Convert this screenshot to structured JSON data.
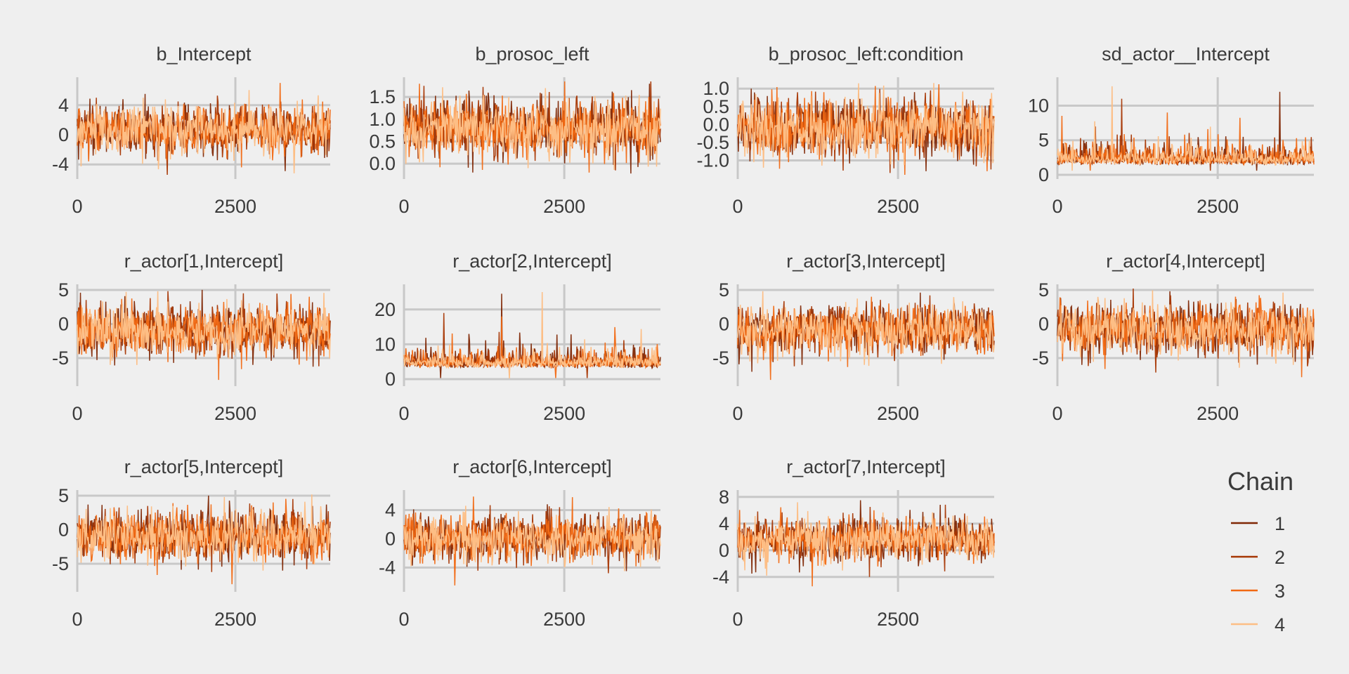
{
  "figure": {
    "colors": {
      "background": "#efefef",
      "grid": "#c8c8c8",
      "text": "#3a3a3a"
    },
    "legend": {
      "title": "Chain",
      "position": "right-bottom"
    }
  },
  "chart_data": [
    {
      "type": "line",
      "title": "b_Intercept",
      "xlim": [
        0,
        4000
      ],
      "ylim": [
        -5.4,
        7.2
      ],
      "xticks": [
        0,
        2500
      ],
      "yticks": [
        -4,
        0,
        4
      ],
      "ytick_labels": [
        "-4",
        "0",
        "4"
      ],
      "grid": true,
      "series": [
        {
          "name": "1",
          "center": 0.7,
          "spread": 1.6,
          "high_peak": 4.8,
          "low_peak": -4.9
        },
        {
          "name": "2",
          "center": 0.7,
          "spread": 1.6,
          "high_peak": 4.5,
          "low_peak": -5.4
        },
        {
          "name": "3",
          "center": 0.7,
          "spread": 1.6,
          "high_peak": 7.0,
          "low_peak": -4.4
        },
        {
          "name": "4",
          "center": 0.7,
          "spread": 1.6,
          "high_peak": 5.0,
          "low_peak": -5.2
        }
      ]
    },
    {
      "type": "line",
      "title": "b_prosoc_left",
      "xlim": [
        0,
        4000
      ],
      "ylim": [
        -0.25,
        1.85
      ],
      "xticks": [
        0,
        2500
      ],
      "yticks": [
        0,
        0.5,
        1,
        1.5
      ],
      "ytick_labels": [
        "0.0",
        "0.5",
        "1.0",
        "1.5"
      ],
      "grid": true,
      "series": [
        {
          "name": "1",
          "center": 0.8,
          "spread": 0.32,
          "high_peak": 1.8,
          "low_peak": -0.2
        },
        {
          "name": "2",
          "center": 0.8,
          "spread": 0.32,
          "high_peak": 1.75,
          "low_peak": -0.15
        },
        {
          "name": "3",
          "center": 0.8,
          "spread": 0.32,
          "high_peak": 1.8,
          "low_peak": -0.2
        },
        {
          "name": "4",
          "center": 0.8,
          "spread": 0.32,
          "high_peak": 1.7,
          "low_peak": -0.1
        }
      ]
    },
    {
      "type": "line",
      "title": "b_prosoc_left:condition",
      "xlim": [
        0,
        4000
      ],
      "ylim": [
        -1.4,
        1.2
      ],
      "xticks": [
        0,
        2500
      ],
      "yticks": [
        -1,
        -0.5,
        0,
        0.5,
        1
      ],
      "ytick_labels": [
        "-1.0",
        "-0.5",
        "0.0",
        "0.5",
        "1.0"
      ],
      "grid": true,
      "series": [
        {
          "name": "1",
          "center": -0.1,
          "spread": 0.4,
          "high_peak": 1.0,
          "low_peak": -1.3
        },
        {
          "name": "2",
          "center": -0.1,
          "spread": 0.4,
          "high_peak": 0.95,
          "low_peak": -1.35
        },
        {
          "name": "3",
          "center": -0.1,
          "spread": 0.4,
          "high_peak": 0.9,
          "low_peak": -1.3
        },
        {
          "name": "4",
          "center": -0.1,
          "spread": 0.4,
          "high_peak": 1.15,
          "low_peak": -1.2
        }
      ]
    },
    {
      "type": "line",
      "title": "sd_actor__Intercept",
      "xlim": [
        0,
        4000
      ],
      "ylim": [
        0,
        13.5
      ],
      "xticks": [
        0,
        2500
      ],
      "yticks": [
        0,
        5,
        10
      ],
      "ytick_labels": [
        "0",
        "5",
        "10"
      ],
      "grid": true,
      "skew": "right",
      "series": [
        {
          "name": "1",
          "center": 2.3,
          "spread": 1.2,
          "high_peak": 12.0,
          "low_peak": 0.6
        },
        {
          "name": "2",
          "center": 2.3,
          "spread": 1.2,
          "high_peak": 11.0,
          "low_peak": 0.6
        },
        {
          "name": "3",
          "center": 2.3,
          "spread": 1.2,
          "high_peak": 9.0,
          "low_peak": 0.6
        },
        {
          "name": "4",
          "center": 2.3,
          "spread": 1.2,
          "high_peak": 12.8,
          "low_peak": 0.6
        }
      ]
    },
    {
      "type": "line",
      "title": "r_actor[1,Intercept]",
      "xlim": [
        0,
        4000
      ],
      "ylim": [
        -8.5,
        5.2
      ],
      "xticks": [
        0,
        2500
      ],
      "yticks": [
        -5,
        0,
        5
      ],
      "ytick_labels": [
        "-5",
        "0",
        "5"
      ],
      "grid": true,
      "series": [
        {
          "name": "1",
          "center": -0.9,
          "spread": 1.8,
          "high_peak": 5.0,
          "low_peak": -6.0
        },
        {
          "name": "2",
          "center": -0.9,
          "spread": 1.8,
          "high_peak": 4.5,
          "low_peak": -6.2
        },
        {
          "name": "3",
          "center": -0.9,
          "spread": 1.8,
          "high_peak": 4.0,
          "low_peak": -8.2
        },
        {
          "name": "4",
          "center": -0.9,
          "spread": 1.8,
          "high_peak": 4.8,
          "low_peak": -6.0
        }
      ]
    },
    {
      "type": "line",
      "title": "r_actor[2,Intercept]",
      "xlim": [
        0,
        4000
      ],
      "ylim": [
        -0.8,
        26
      ],
      "xticks": [
        0,
        2500
      ],
      "yticks": [
        0,
        10,
        20
      ],
      "ytick_labels": [
        "0",
        "10",
        "20"
      ],
      "grid": true,
      "skew": "right",
      "series": [
        {
          "name": "1",
          "center": 4.8,
          "spread": 2.2,
          "high_peak": 24.5,
          "low_peak": 0.3
        },
        {
          "name": "2",
          "center": 4.8,
          "spread": 2.2,
          "high_peak": 19.0,
          "low_peak": 0.3
        },
        {
          "name": "3",
          "center": 4.8,
          "spread": 2.2,
          "high_peak": 18.0,
          "low_peak": 0.3
        },
        {
          "name": "4",
          "center": 4.8,
          "spread": 2.2,
          "high_peak": 25.0,
          "low_peak": 0.2
        }
      ]
    },
    {
      "type": "line",
      "title": "r_actor[3,Intercept]",
      "xlim": [
        0,
        4000
      ],
      "ylim": [
        -8.5,
        5.2
      ],
      "xticks": [
        0,
        2500
      ],
      "yticks": [
        -5,
        0,
        5
      ],
      "ytick_labels": [
        "-5",
        "0",
        "5"
      ],
      "grid": true,
      "series": [
        {
          "name": "1",
          "center": -0.9,
          "spread": 1.8,
          "high_peak": 4.6,
          "low_peak": -6.0
        },
        {
          "name": "2",
          "center": -0.9,
          "spread": 1.8,
          "high_peak": 4.2,
          "low_peak": -6.2
        },
        {
          "name": "3",
          "center": -0.9,
          "spread": 1.8,
          "high_peak": 4.0,
          "low_peak": -8.2
        },
        {
          "name": "4",
          "center": -0.9,
          "spread": 1.8,
          "high_peak": 4.8,
          "low_peak": -6.0
        }
      ]
    },
    {
      "type": "line",
      "title": "r_actor[4,Intercept]",
      "xlim": [
        0,
        4000
      ],
      "ylim": [
        -8.5,
        5.2
      ],
      "xticks": [
        0,
        2500
      ],
      "yticks": [
        -5,
        0,
        5
      ],
      "ytick_labels": [
        "-5",
        "0",
        "5"
      ],
      "grid": true,
      "series": [
        {
          "name": "1",
          "center": -0.9,
          "spread": 1.8,
          "high_peak": 4.8,
          "low_peak": -6.0
        },
        {
          "name": "2",
          "center": -0.9,
          "spread": 1.8,
          "high_peak": 4.2,
          "low_peak": -6.2
        },
        {
          "name": "3",
          "center": -0.9,
          "spread": 1.8,
          "high_peak": 4.0,
          "low_peak": -7.8
        },
        {
          "name": "4",
          "center": -0.9,
          "spread": 1.8,
          "high_peak": 4.6,
          "low_peak": -6.0
        }
      ]
    },
    {
      "type": "line",
      "title": "r_actor[5,Intercept]",
      "xlim": [
        0,
        4000
      ],
      "ylim": [
        -8.5,
        5.2
      ],
      "xticks": [
        0,
        2500
      ],
      "yticks": [
        -5,
        0,
        5
      ],
      "ytick_labels": [
        "-5",
        "0",
        "5"
      ],
      "grid": true,
      "series": [
        {
          "name": "1",
          "center": -0.9,
          "spread": 1.8,
          "high_peak": 5.0,
          "low_peak": -6.0
        },
        {
          "name": "2",
          "center": -0.9,
          "spread": 1.8,
          "high_peak": 4.5,
          "low_peak": -6.2
        },
        {
          "name": "3",
          "center": -0.9,
          "spread": 1.8,
          "high_peak": 4.0,
          "low_peak": -8.0
        },
        {
          "name": "4",
          "center": -0.9,
          "spread": 1.8,
          "high_peak": 4.8,
          "low_peak": -6.0
        }
      ]
    },
    {
      "type": "line",
      "title": "r_actor[6,Intercept]",
      "xlim": [
        0,
        4000
      ],
      "ylim": [
        -6.8,
        6.2
      ],
      "xticks": [
        0,
        2500
      ],
      "yticks": [
        -4,
        0,
        4
      ],
      "ytick_labels": [
        "-4",
        "0",
        "4"
      ],
      "grid": true,
      "series": [
        {
          "name": "1",
          "center": 0.2,
          "spread": 1.6,
          "high_peak": 4.8,
          "low_peak": -4.5
        },
        {
          "name": "2",
          "center": 0.2,
          "spread": 1.6,
          "high_peak": 4.4,
          "low_peak": -4.8
        },
        {
          "name": "3",
          "center": 0.2,
          "spread": 1.6,
          "high_peak": 5.8,
          "low_peak": -6.5
        },
        {
          "name": "4",
          "center": 0.2,
          "spread": 1.6,
          "high_peak": 4.6,
          "low_peak": -4.5
        }
      ]
    },
    {
      "type": "line",
      "title": "r_actor[7,Intercept]",
      "xlim": [
        0,
        4000
      ],
      "ylim": [
        -5.6,
        8.4
      ],
      "xticks": [
        0,
        2500
      ],
      "yticks": [
        -4,
        0,
        4,
        8
      ],
      "ytick_labels": [
        "-4",
        "0",
        "4",
        "8"
      ],
      "grid": true,
      "series": [
        {
          "name": "1",
          "center": 1.6,
          "spread": 1.6,
          "high_peak": 7.5,
          "low_peak": -3.5
        },
        {
          "name": "2",
          "center": 1.6,
          "spread": 1.6,
          "high_peak": 6.5,
          "low_peak": -4.0
        },
        {
          "name": "3",
          "center": 1.6,
          "spread": 1.6,
          "high_peak": 6.0,
          "low_peak": -5.4
        },
        {
          "name": "4",
          "center": 1.6,
          "spread": 1.6,
          "high_peak": 7.2,
          "low_peak": -3.8
        }
      ]
    }
  ],
  "series_colors": {
    "1": "#7f2704",
    "2": "#a63603",
    "3": "#f16913",
    "4": "#fdbe85"
  }
}
